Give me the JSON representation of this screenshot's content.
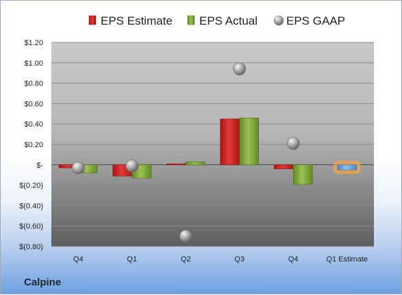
{
  "company": "Calpine",
  "chart_data": {
    "type": "bar",
    "categories": [
      "Q4",
      "Q1",
      "Q2",
      "Q3",
      "Q4",
      "Q1 Estimate"
    ],
    "series": [
      {
        "name": "EPS Estimate",
        "color": "#d42a2a",
        "values": [
          -0.03,
          -0.11,
          0.01,
          0.45,
          -0.04,
          null
        ]
      },
      {
        "name": "EPS Actual",
        "color": "#86ad3b",
        "values": [
          -0.08,
          -0.13,
          0.03,
          0.46,
          -0.19,
          null
        ]
      },
      {
        "name": "EPS GAAP",
        "color": "#9a9a9a",
        "marker": "circle",
        "values": [
          -0.03,
          -0.01,
          -0.7,
          0.94,
          0.21,
          null
        ]
      }
    ],
    "forecast": {
      "category": "Q1 Estimate",
      "value": -0.05,
      "color": "#6fa8dc",
      "highlight": "#f5a34a"
    },
    "ylim": [
      -0.8,
      1.2
    ],
    "yticks": [
      "$(0.80)",
      "$(0.60)",
      "$(0.40)",
      "$(0.20)",
      "$-",
      "$0.20",
      "$0.40",
      "$0.60",
      "$0.80",
      "$1.00",
      "$1.20"
    ],
    "grid": true,
    "legend": "top"
  }
}
